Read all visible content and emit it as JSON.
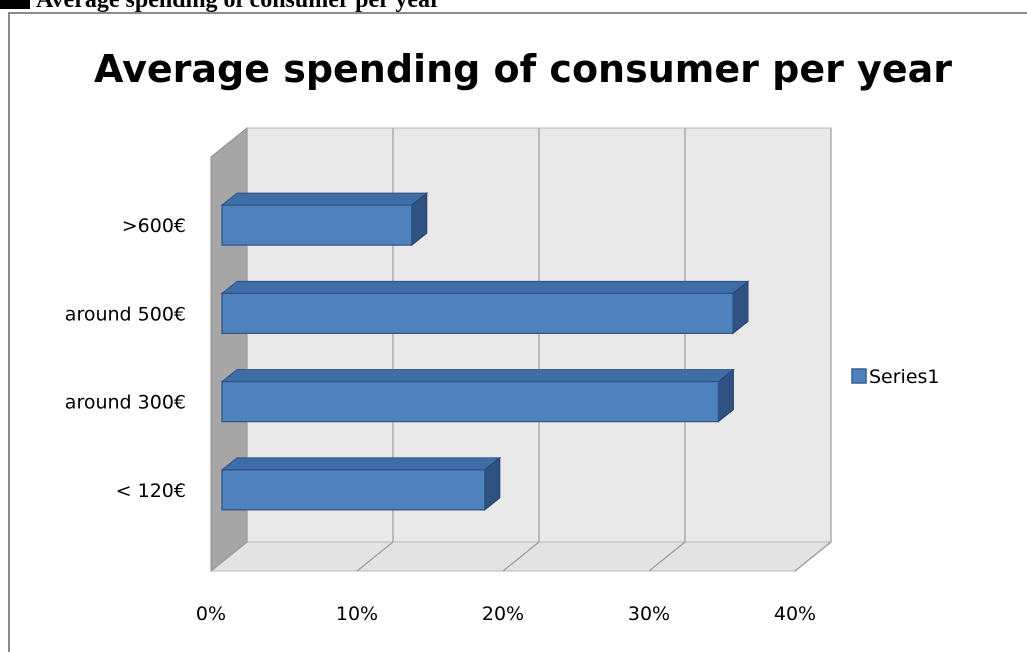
{
  "header_text": "Average spending of consumer per year",
  "chart_data": {
    "type": "bar",
    "orientation": "horizontal",
    "title": "Average spending of consumer per year",
    "categories": [
      "< 120€",
      "around 300€",
      "around 500€",
      ">600€"
    ],
    "series": [
      {
        "name": "Series1",
        "values": [
          0.18,
          0.34,
          0.35,
          0.13
        ],
        "color": "#4F81BD"
      }
    ],
    "xlim": [
      0,
      0.4
    ],
    "x_ticks": [
      0,
      0.1,
      0.2,
      0.3,
      0.4
    ],
    "x_tick_labels": [
      "0%",
      "10%",
      "20%",
      "30%",
      "40%"
    ],
    "grid": true,
    "legend_position": "right",
    "style": "3d"
  }
}
